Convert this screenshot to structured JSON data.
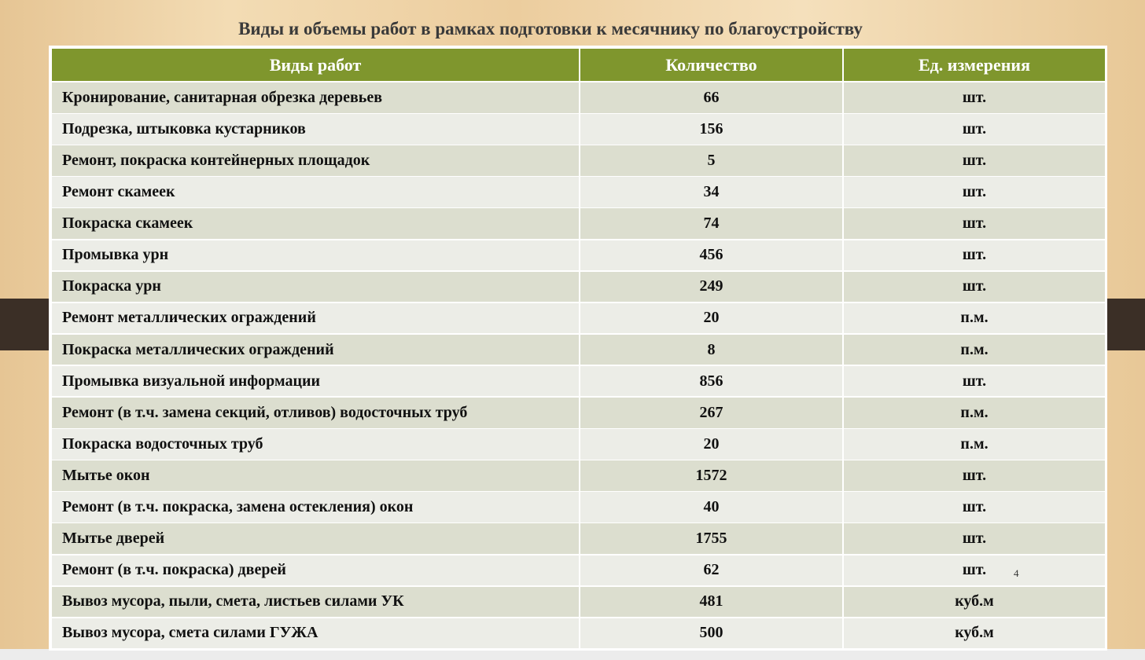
{
  "title": "Виды и объемы работ в рамках подготовки к месячнику по благоустройству",
  "table": {
    "header": [
      "Виды работ",
      "Количество",
      "Ед. измерения"
    ],
    "rows": [
      [
        "Кронирование, санитарная обрезка деревьев",
        66,
        "шт."
      ],
      [
        "Подрезка, штыковка кустарников",
        156,
        "шт."
      ],
      [
        "Ремонт, покраска контейнерных площадок",
        5,
        "шт."
      ],
      [
        "Ремонт скамеек",
        34,
        "шт."
      ],
      [
        "Покраска скамеек",
        74,
        "шт."
      ],
      [
        "Промывка урн",
        456,
        "шт."
      ],
      [
        "Покраска урн",
        249,
        "шт."
      ],
      [
        "Ремонт металлических ограждений",
        20,
        "п.м."
      ],
      [
        "Покраска металлических ограждений",
        8,
        "п.м."
      ],
      [
        "Промывка визуальной информации",
        856,
        "шт."
      ],
      [
        "Ремонт (в т.ч. замена секций, отливов) водосточных труб",
        267,
        "п.м."
      ],
      [
        "Покраска водосточных труб",
        20,
        "п.м."
      ],
      [
        "Мытье окон",
        1572,
        "шт."
      ],
      [
        "Ремонт (в т.ч. покраска, замена остекления) окон",
        40,
        "шт."
      ],
      [
        "Мытье дверей",
        1755,
        "шт."
      ],
      [
        "Ремонт (в т.ч. покраска) дверей",
        62,
        "шт."
      ],
      [
        "Вывоз мусора,  пыли, смета, листьев силами УК",
        481,
        "куб.м"
      ],
      [
        "Вывоз мусора, смета силами ГУЖА",
        500,
        "куб.м"
      ]
    ]
  },
  "page_number": "4"
}
